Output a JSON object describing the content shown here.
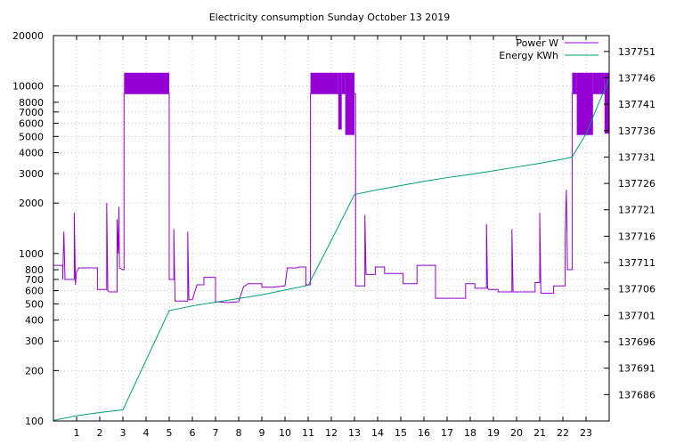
{
  "chart_data": {
    "type": "line",
    "title": "Electricity consumption Sunday October 13 2019",
    "xlabel": "",
    "ylabel": "",
    "y2label": "",
    "grid": true,
    "legend_position": "top-right",
    "xlim": [
      0,
      24
    ],
    "x_ticks": [
      1,
      2,
      3,
      4,
      5,
      6,
      7,
      8,
      9,
      10,
      11,
      12,
      13,
      14,
      15,
      16,
      17,
      18,
      19,
      20,
      21,
      22,
      23
    ],
    "y_scale": "log",
    "ylim": [
      100,
      20000
    ],
    "y_ticks": [
      100,
      200,
      300,
      400,
      500,
      600,
      700,
      800,
      1000,
      2000,
      3000,
      4000,
      5000,
      6000,
      7000,
      8000,
      10000,
      20000
    ],
    "y2_scale": "linear",
    "y2lim": [
      137681,
      137754
    ],
    "y2_ticks": [
      137686,
      137691,
      137696,
      137701,
      137706,
      137711,
      137716,
      137721,
      137726,
      137731,
      137736,
      137741,
      137746,
      137751
    ],
    "series": [
      {
        "name": "Power W",
        "axis": "y",
        "color": "#9400d3",
        "style": "steps",
        "points": [
          [
            0.0,
            850
          ],
          [
            0.4,
            850
          ],
          [
            0.4,
            700
          ],
          [
            0.45,
            1350
          ],
          [
            0.5,
            700
          ],
          [
            0.9,
            700
          ],
          [
            0.9,
            1750
          ],
          [
            0.95,
            650
          ],
          [
            1.0,
            780
          ],
          [
            1.1,
            820
          ],
          [
            1.5,
            820
          ],
          [
            1.9,
            820
          ],
          [
            1.9,
            610
          ],
          [
            2.3,
            610
          ],
          [
            2.3,
            2000
          ],
          [
            2.35,
            600
          ],
          [
            2.4,
            590
          ],
          [
            2.75,
            590
          ],
          [
            2.75,
            1600
          ],
          [
            2.8,
            1000
          ],
          [
            2.83,
            1900
          ],
          [
            2.85,
            820
          ],
          [
            3.0,
            800
          ],
          [
            3.05,
            800
          ],
          [
            3.05,
            9000
          ],
          [
            5.0,
            9000
          ],
          [
            5.0,
            700
          ],
          [
            5.2,
            700
          ],
          [
            5.2,
            1400
          ],
          [
            5.25,
            520
          ],
          [
            5.5,
            520
          ],
          [
            5.8,
            520
          ],
          [
            5.8,
            1350
          ],
          [
            5.85,
            530
          ],
          [
            6.0,
            530
          ],
          [
            6.2,
            650
          ],
          [
            6.5,
            650
          ],
          [
            6.5,
            720
          ],
          [
            7.0,
            720
          ],
          [
            7.0,
            515
          ],
          [
            7.5,
            510
          ],
          [
            8.0,
            515
          ],
          [
            8.2,
            630
          ],
          [
            8.4,
            660
          ],
          [
            8.8,
            660
          ],
          [
            9.0,
            660
          ],
          [
            9.0,
            630
          ],
          [
            9.5,
            630
          ],
          [
            10.0,
            640
          ],
          [
            10.1,
            820
          ],
          [
            10.5,
            820
          ],
          [
            10.6,
            830
          ],
          [
            10.9,
            830
          ],
          [
            10.9,
            650
          ],
          [
            11.1,
            650
          ],
          [
            11.1,
            9000
          ],
          [
            13.05,
            9000
          ],
          [
            13.05,
            640
          ],
          [
            13.45,
            640
          ],
          [
            13.45,
            1700
          ],
          [
            13.5,
            750
          ],
          [
            13.9,
            750
          ],
          [
            13.9,
            830
          ],
          [
            14.3,
            830
          ],
          [
            14.3,
            760
          ],
          [
            15.1,
            760
          ],
          [
            15.1,
            660
          ],
          [
            15.7,
            660
          ],
          [
            15.7,
            850
          ],
          [
            16.5,
            850
          ],
          [
            16.5,
            540
          ],
          [
            17.1,
            540
          ],
          [
            17.8,
            540
          ],
          [
            17.8,
            660
          ],
          [
            18.2,
            660
          ],
          [
            18.2,
            620
          ],
          [
            18.7,
            620
          ],
          [
            18.7,
            1500
          ],
          [
            18.75,
            620
          ],
          [
            18.8,
            610
          ],
          [
            19.2,
            610
          ],
          [
            19.2,
            590
          ],
          [
            19.8,
            590
          ],
          [
            19.8,
            1400
          ],
          [
            19.85,
            590
          ],
          [
            20.8,
            590
          ],
          [
            20.8,
            670
          ],
          [
            21.0,
            670
          ],
          [
            21.0,
            1750
          ],
          [
            21.05,
            580
          ],
          [
            21.6,
            580
          ],
          [
            21.6,
            640
          ],
          [
            22.1,
            640
          ],
          [
            22.1,
            1250
          ],
          [
            22.15,
            2400
          ],
          [
            22.2,
            800
          ],
          [
            22.4,
            800
          ],
          [
            22.4,
            9000
          ],
          [
            24.0,
            9000
          ]
        ],
        "bursts": [
          {
            "start": 3.05,
            "end": 5.0,
            "low": 9000,
            "high": 12000
          },
          {
            "start": 11.1,
            "end": 12.3,
            "low": 9000,
            "high": 12000
          },
          {
            "start": 12.3,
            "end": 12.45,
            "low": 5500,
            "high": 12000
          },
          {
            "start": 12.45,
            "end": 12.6,
            "low": 9000,
            "high": 12000
          },
          {
            "start": 12.6,
            "end": 13.0,
            "low": 5100,
            "high": 12000
          },
          {
            "start": 22.4,
            "end": 22.6,
            "low": 9000,
            "high": 12000
          },
          {
            "start": 22.6,
            "end": 23.3,
            "low": 5100,
            "high": 12000
          },
          {
            "start": 23.3,
            "end": 23.8,
            "low": 9000,
            "high": 12000
          },
          {
            "start": 23.8,
            "end": 24.0,
            "low": 5200,
            "high": 12000
          }
        ]
      },
      {
        "name": "Energy KWh",
        "axis": "y2",
        "color": "#009e73",
        "style": "line",
        "points": [
          [
            0.0,
            137681.1
          ],
          [
            1.0,
            137682.0
          ],
          [
            2.0,
            137682.6
          ],
          [
            3.0,
            137683.1
          ],
          [
            5.0,
            137701.9
          ],
          [
            6.0,
            137702.8
          ],
          [
            7.0,
            137703.5
          ],
          [
            8.0,
            137704.2
          ],
          [
            9.0,
            137704.9
          ],
          [
            10.0,
            137705.8
          ],
          [
            11.0,
            137706.7
          ],
          [
            12.0,
            137715.2
          ],
          [
            13.0,
            137723.9
          ],
          [
            14.0,
            137724.8
          ],
          [
            15.0,
            137725.6
          ],
          [
            16.0,
            137726.4
          ],
          [
            17.0,
            137727.1
          ],
          [
            18.0,
            137727.7
          ],
          [
            19.0,
            137728.4
          ],
          [
            20.0,
            137729.1
          ],
          [
            21.0,
            137729.8
          ],
          [
            22.0,
            137730.6
          ],
          [
            22.4,
            137731.0
          ],
          [
            23.0,
            137735.4
          ],
          [
            23.5,
            137740.7
          ],
          [
            24.0,
            137745.9
          ]
        ]
      }
    ]
  }
}
